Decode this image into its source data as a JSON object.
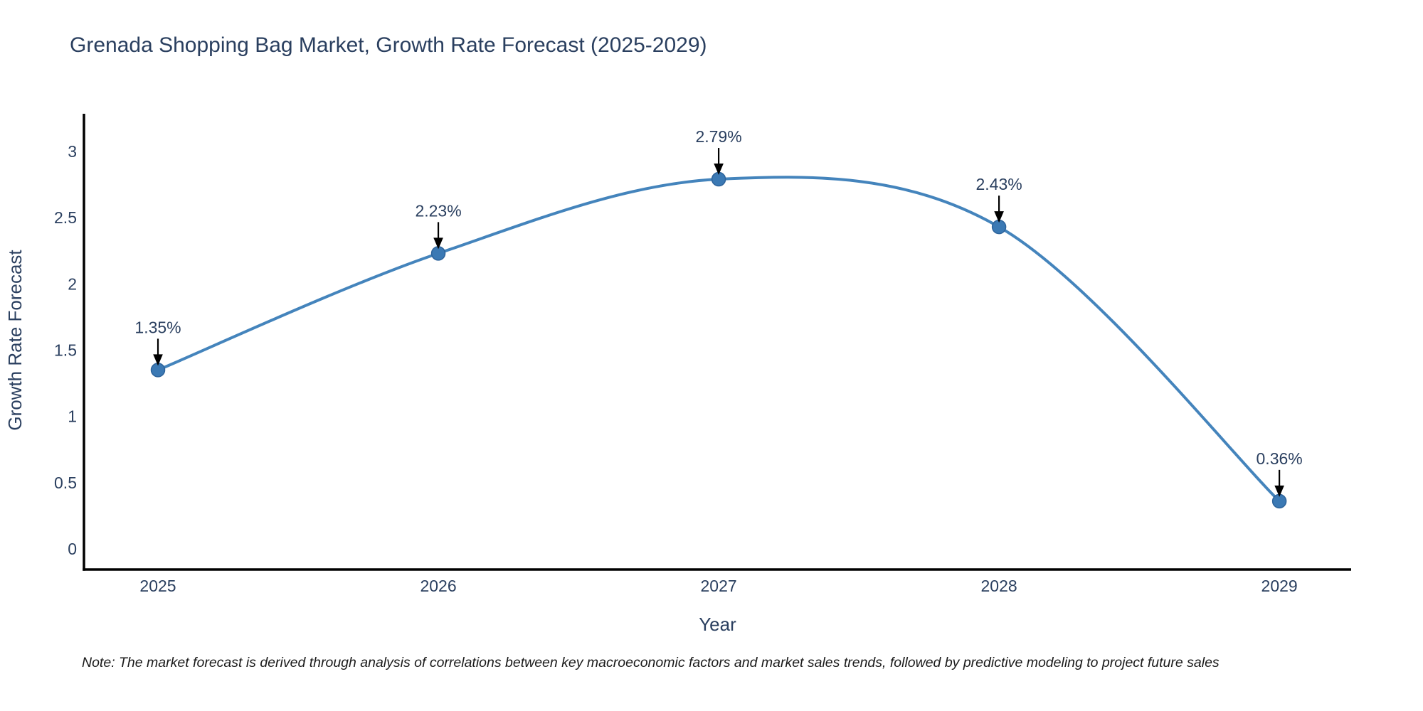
{
  "chart_data": {
    "type": "line",
    "title": "Grenada Shopping Bag Market, Growth Rate Forecast (2025-2029)",
    "xlabel": "Year",
    "ylabel": "Growth Rate Forecast",
    "x": [
      2025,
      2026,
      2027,
      2028,
      2029
    ],
    "values": [
      1.35,
      2.23,
      2.79,
      2.43,
      0.36
    ],
    "point_labels": [
      "1.35%",
      "2.23%",
      "2.79%",
      "2.43%",
      "0.36%"
    ],
    "series_name": "Growth Rate Forecast",
    "y_ticks": [
      "3",
      "2.5",
      "2",
      "1.5",
      "1",
      "0.5",
      "0"
    ],
    "y_tick_values": [
      3,
      2.5,
      2,
      1.5,
      1,
      0.5,
      0
    ],
    "x_tick_labels": [
      "2025",
      "2026",
      "2027",
      "2028",
      "2029"
    ],
    "ylim": [
      -0.156,
      3.284
    ],
    "xlim": [
      2024.736,
      2029.256
    ],
    "grid": false,
    "legend_position": "none",
    "line_shape": "spline",
    "annotations_have_arrows": true,
    "colors": {
      "line": "#4484bc",
      "marker": "#3b79b4",
      "marker_edge": "#2d639b",
      "axis": "#000000",
      "text": "#2a3f5f",
      "arrow": "#000000",
      "note": "#1a1a1a"
    },
    "note": "Note: The market forecast is derived through analysis of correlations between key macroeconomic factors and market sales trends, followed by predictive modeling to project future sales"
  }
}
